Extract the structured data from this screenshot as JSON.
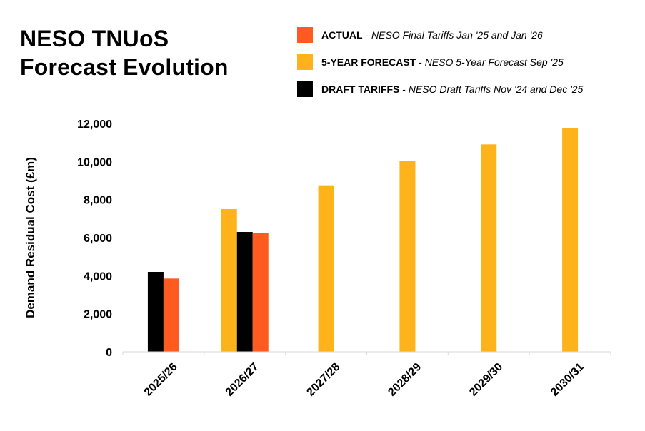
{
  "title": {
    "line1": "NESO TNUoS",
    "line2": "Forecast Evolution"
  },
  "legend": [
    {
      "name": "ACTUAL",
      "desc": "NESO Final Tariffs Jan '25 and Jan '26",
      "color": "#ff5a1f"
    },
    {
      "name": "5-YEAR FORECAST",
      "desc": "NESO 5-Year Forecast Sep '25",
      "color": "#ffb31a"
    },
    {
      "name": "DRAFT TARIFFS",
      "desc": "NESO Draft Tariffs Nov '24 and Dec '25",
      "color": "#000000"
    }
  ],
  "chart_data": {
    "type": "bar",
    "title": "NESO TNUoS Forecast Evolution",
    "xlabel": "",
    "ylabel": "Demand Residual Cost (£m)",
    "ylim": [
      0,
      12000
    ],
    "yticks": [
      0,
      2000,
      4000,
      6000,
      8000,
      10000,
      12000
    ],
    "ytick_labels": [
      "0",
      "2,000",
      "4,000",
      "6,000",
      "8,000",
      "10,000",
      "12,000"
    ],
    "categories": [
      "2025/26",
      "2026/27",
      "2027/28",
      "2028/29",
      "2029/30",
      "2030/31"
    ],
    "series": [
      {
        "name": "5-YEAR FORECAST",
        "color": "#ffb31a",
        "values": [
          null,
          7500,
          8750,
          10050,
          10900,
          11750
        ]
      },
      {
        "name": "DRAFT TARIFFS",
        "color": "#000000",
        "values": [
          4200,
          6300,
          null,
          null,
          null,
          null
        ]
      },
      {
        "name": "ACTUAL",
        "color": "#ff5a1f",
        "values": [
          3850,
          6250,
          null,
          null,
          null,
          null
        ]
      }
    ]
  }
}
